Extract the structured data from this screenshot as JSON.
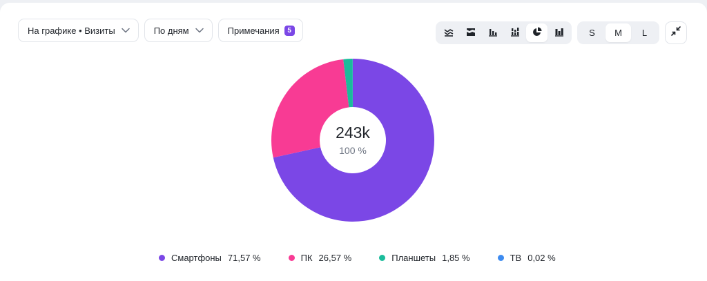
{
  "toolbar": {
    "metric_label": "На графике • Визиты",
    "period_label": "По дням",
    "notes_label": "Примечания",
    "notes_count": "5",
    "chart_types": [
      {
        "icon": "stacked-area-icon",
        "active": false
      },
      {
        "icon": "stacked-area-100-icon",
        "active": false
      },
      {
        "icon": "bar-chart-icon",
        "active": false
      },
      {
        "icon": "stacked-bar-icon",
        "active": false
      },
      {
        "icon": "pie-chart-icon",
        "active": true
      },
      {
        "icon": "column-chart-icon",
        "active": false
      }
    ],
    "sizes": [
      {
        "label": "S",
        "active": false
      },
      {
        "label": "M",
        "active": true
      },
      {
        "label": "L",
        "active": false
      }
    ]
  },
  "chart_data": {
    "type": "pie",
    "donut": true,
    "center_total": "243k",
    "center_percent": "100 %",
    "categories": [
      "Смартфоны",
      "ПК",
      "Планшеты",
      "ТВ"
    ],
    "values": [
      71.57,
      26.57,
      1.85,
      0.02
    ],
    "value_labels": [
      "71,57 %",
      "26,57 %",
      "1,85 %",
      "0,02 %"
    ],
    "colors": [
      "#7b47e6",
      "#f83b94",
      "#1bbc9b",
      "#3d8bf0"
    ],
    "legend_position": "bottom"
  }
}
